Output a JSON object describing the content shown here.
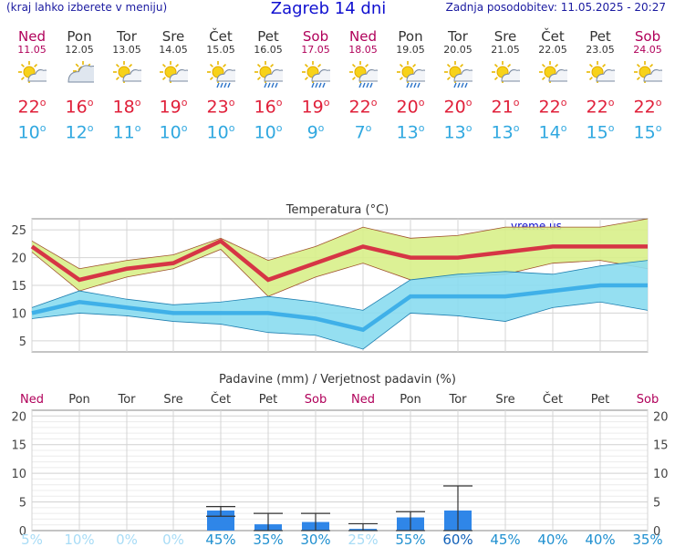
{
  "header": {
    "left": "(kraj lahko izberete v meniju)",
    "title": "Zagreb 14 dni",
    "right": "Zadnja posodobitev: 11.05.2025 - 20:27"
  },
  "days": [
    {
      "name": "Ned",
      "date": "11.05",
      "weekend": true,
      "icon": "sun-cloud-icon",
      "max": "22",
      "min": "10"
    },
    {
      "name": "Pon",
      "date": "12.05",
      "weekend": false,
      "icon": "cloud-sun-icon",
      "max": "16",
      "min": "12"
    },
    {
      "name": "Tor",
      "date": "13.05",
      "weekend": false,
      "icon": "sun-cloud-icon",
      "max": "18",
      "min": "11"
    },
    {
      "name": "Sre",
      "date": "14.05",
      "weekend": false,
      "icon": "sun-cloud-icon",
      "max": "19",
      "min": "10"
    },
    {
      "name": "Čet",
      "date": "15.05",
      "weekend": false,
      "icon": "sun-cloud-rain-icon",
      "max": "23",
      "min": "10"
    },
    {
      "name": "Pet",
      "date": "16.05",
      "weekend": false,
      "icon": "sun-cloud-rain-icon",
      "max": "16",
      "min": "10"
    },
    {
      "name": "Sob",
      "date": "17.05",
      "weekend": true,
      "icon": "sun-cloud-rain-icon",
      "max": "19",
      "min": "9"
    },
    {
      "name": "Ned",
      "date": "18.05",
      "weekend": true,
      "icon": "sun-cloud-rain-icon",
      "max": "22",
      "min": "7"
    },
    {
      "name": "Pon",
      "date": "19.05",
      "weekend": false,
      "icon": "sun-cloud-rain-icon",
      "max": "20",
      "min": "13"
    },
    {
      "name": "Tor",
      "date": "20.05",
      "weekend": false,
      "icon": "sun-cloud-rain-icon",
      "max": "20",
      "min": "13"
    },
    {
      "name": "Sre",
      "date": "21.05",
      "weekend": false,
      "icon": "sun-cloud-icon",
      "max": "21",
      "min": "13"
    },
    {
      "name": "Čet",
      "date": "22.05",
      "weekend": false,
      "icon": "sun-cloud-icon",
      "max": "22",
      "min": "14"
    },
    {
      "name": "Pet",
      "date": "23.05",
      "weekend": false,
      "icon": "sun-cloud-icon",
      "max": "22",
      "min": "15"
    },
    {
      "name": "Sob",
      "date": "24.05",
      "weekend": true,
      "icon": "sun-cloud-icon",
      "max": "22",
      "min": "15"
    }
  ],
  "colors": {
    "weekend": "#b0005a",
    "max_line": "#d63545",
    "min_line": "#3fb0e8",
    "max_band": "#d8f08a",
    "min_band": "#8adcf0",
    "precip_bar": "#2f86e8",
    "prob_text": "#2090d0",
    "prob_text_light": "#a8dcf6"
  },
  "chart_data": [
    {
      "type": "line",
      "title": "Temperatura (°C)",
      "watermark": "vreme.us",
      "categories": [
        "Ned",
        "Pon",
        "Tor",
        "Sre",
        "Čet",
        "Pet",
        "Sob",
        "Ned",
        "Pon",
        "Tor",
        "Sre",
        "Čet",
        "Pet",
        "Sob"
      ],
      "ylim": [
        3,
        27
      ],
      "yticks": [
        5,
        10,
        15,
        20,
        25
      ],
      "grid": true,
      "series": [
        {
          "values": [
            22,
            16,
            18,
            19,
            23,
            16,
            19,
            22,
            20,
            20,
            21,
            22,
            22,
            22
          ],
          "band_low": [
            21,
            14,
            16.5,
            18,
            21.5,
            13,
            16.5,
            19,
            16,
            16.5,
            17,
            19,
            19.5,
            18
          ],
          "band_high": [
            23,
            18,
            19.5,
            20.5,
            23.5,
            19.5,
            22,
            25.5,
            23.5,
            24,
            25.5,
            25.5,
            25.5,
            27
          ]
        },
        {
          "values": [
            10,
            12,
            11,
            10,
            10,
            10,
            9,
            7,
            13,
            13,
            13,
            14,
            15,
            15
          ],
          "band_low": [
            9,
            10,
            9.5,
            8.5,
            8,
            6.5,
            6,
            3.5,
            10,
            9.5,
            8.5,
            11,
            12,
            10.5
          ],
          "band_high": [
            11,
            14,
            12.5,
            11.5,
            12,
            13,
            12,
            10.5,
            16,
            17,
            17.5,
            17,
            18.5,
            19.5
          ]
        }
      ]
    },
    {
      "type": "bar",
      "title": "Padavine (mm) / Verjetnost padavin (%)",
      "categories": [
        "Ned",
        "Pon",
        "Tor",
        "Sre",
        "Čet",
        "Pet",
        "Sob",
        "Ned",
        "Pon",
        "Tor",
        "Sre",
        "Čet",
        "Pet",
        "Sob"
      ],
      "ylim": [
        0,
        21
      ],
      "yticks": [
        0,
        5,
        10,
        15,
        20
      ],
      "grid": true,
      "values": [
        0,
        0,
        0,
        0,
        3.5,
        1.1,
        1.5,
        0.3,
        2.3,
        3.5,
        0,
        0,
        0,
        0
      ],
      "range_low": [
        0,
        0,
        0,
        0,
        2.5,
        0,
        0,
        0,
        0,
        0,
        0,
        0,
        0,
        0
      ],
      "range_high": [
        0,
        0,
        0,
        0,
        4.2,
        3.0,
        3.0,
        1.2,
        3.3,
        7.8,
        0,
        0,
        0,
        0
      ],
      "probabilities": [
        "5%",
        "10%",
        "0%",
        "0%",
        "45%",
        "35%",
        "30%",
        "25%",
        "55%",
        "60%",
        "45%",
        "40%",
        "40%",
        "35%"
      ]
    }
  ]
}
